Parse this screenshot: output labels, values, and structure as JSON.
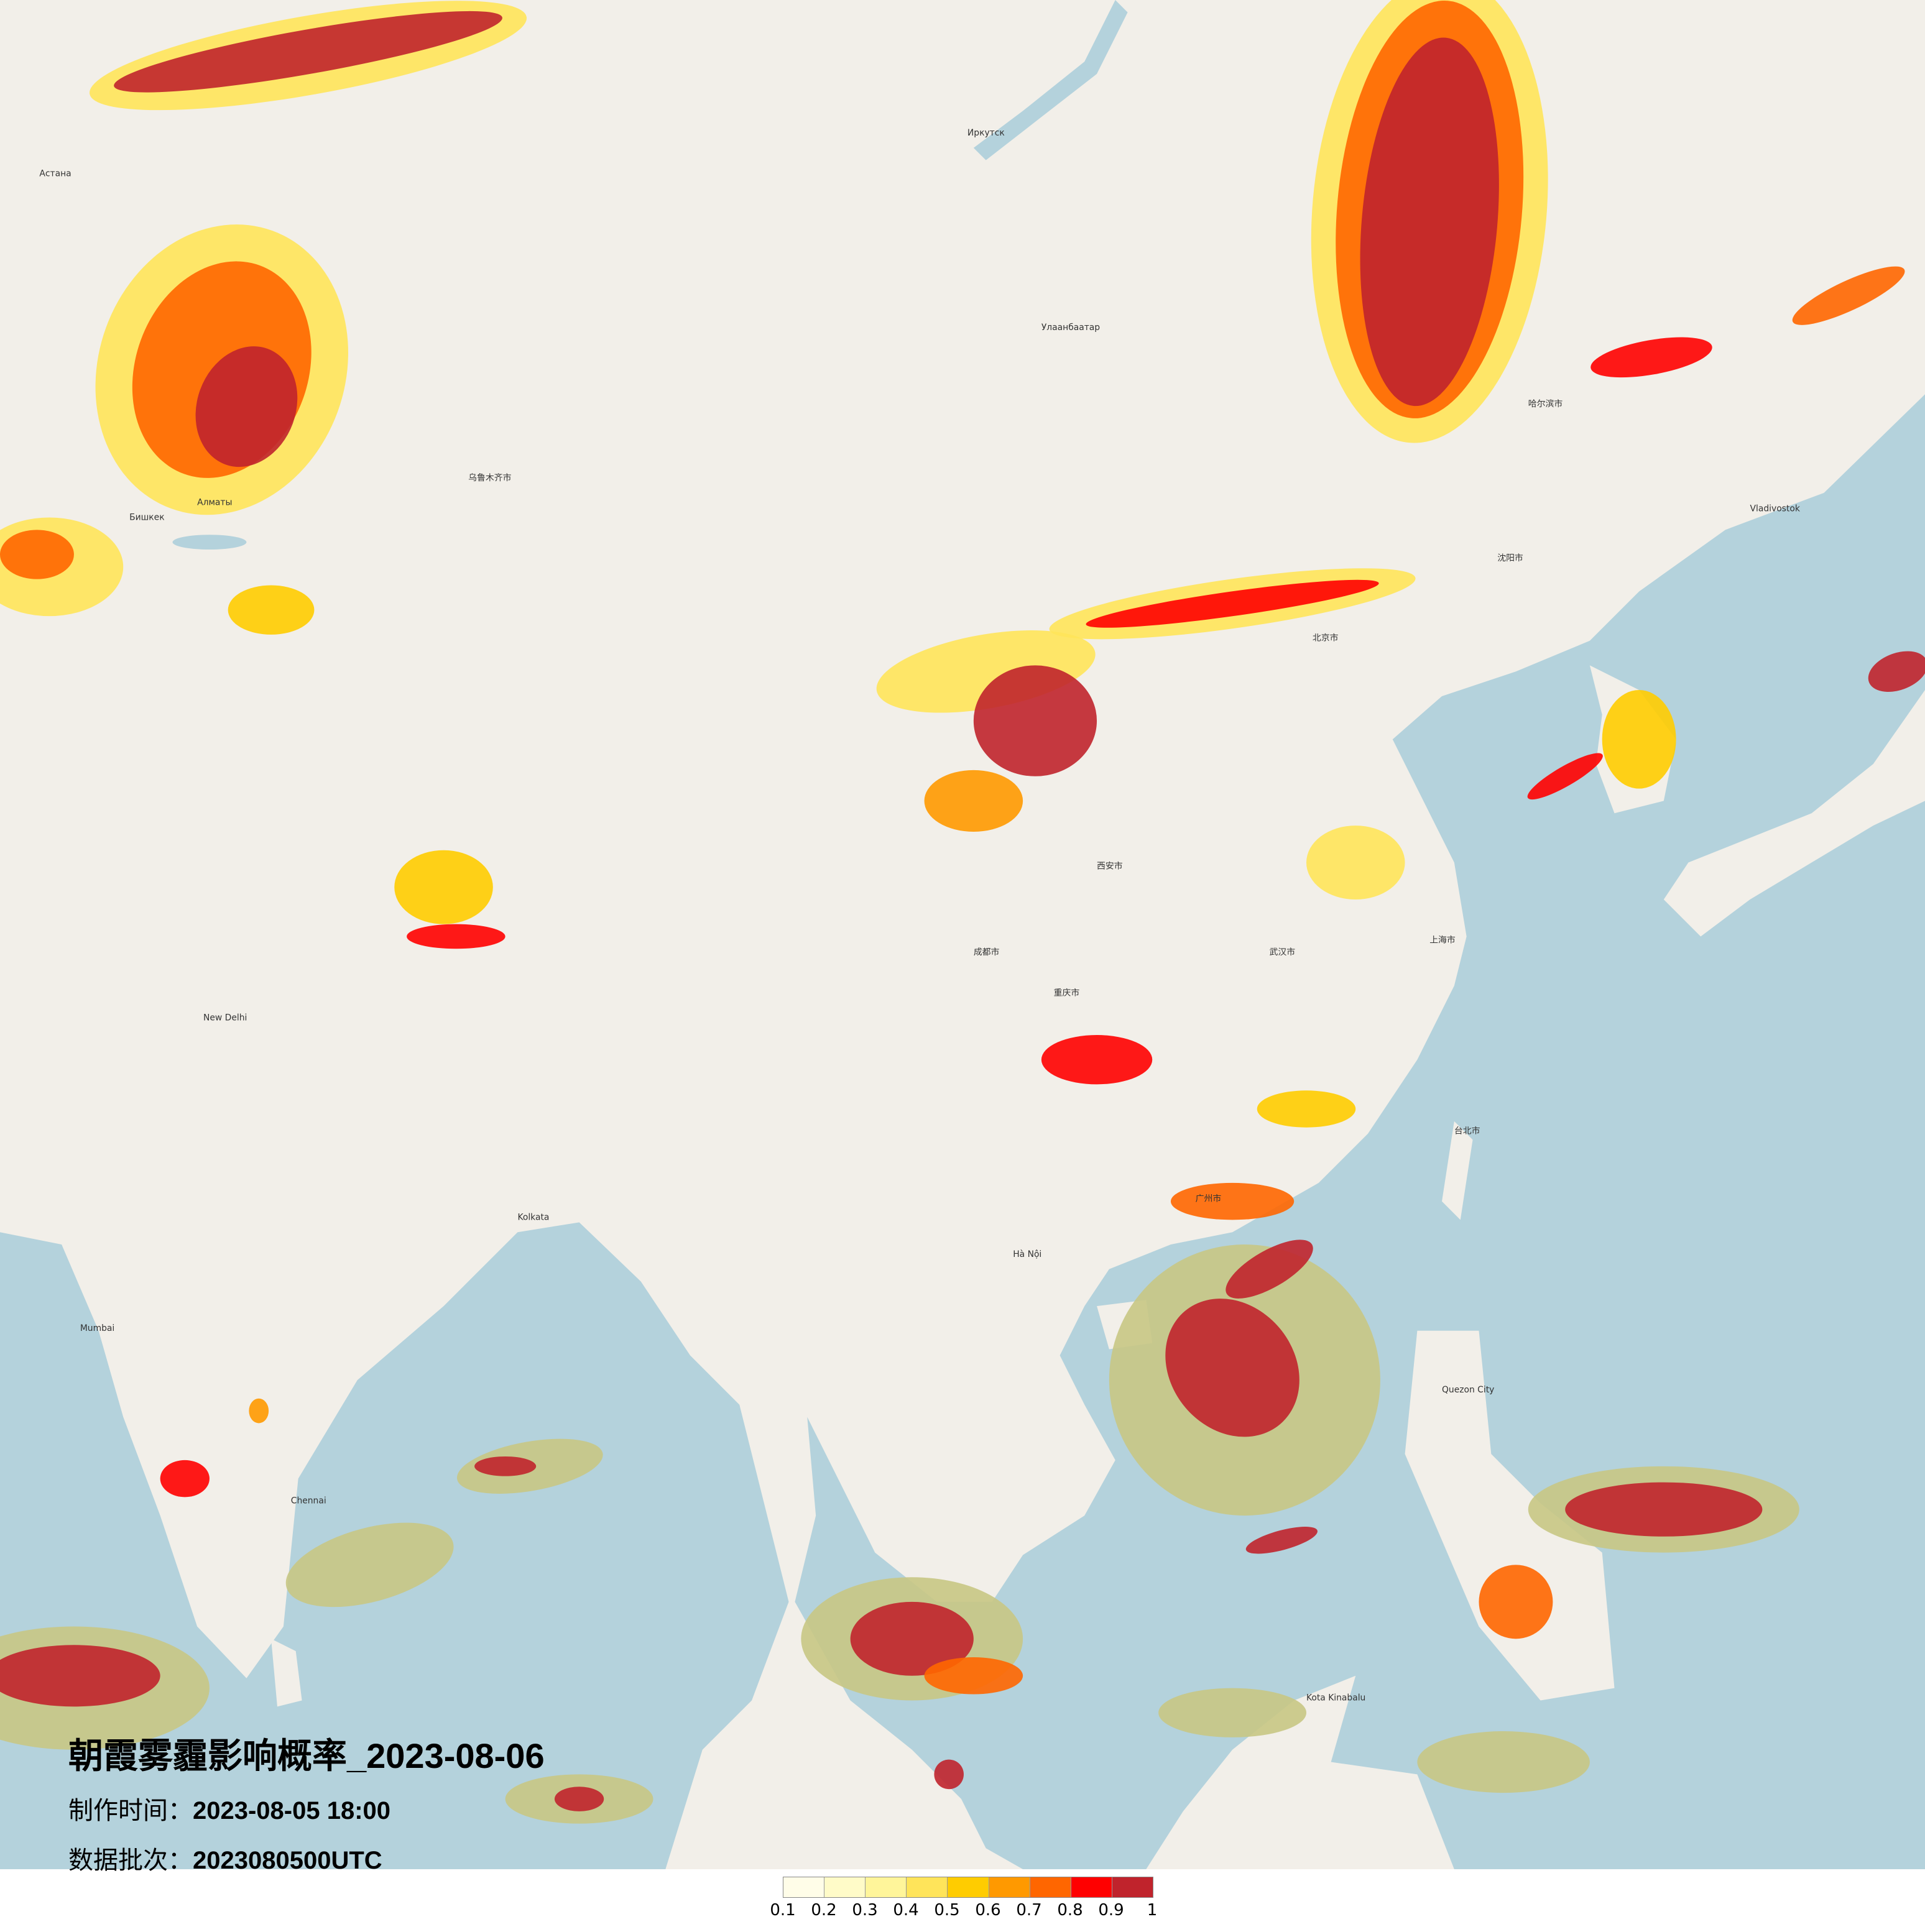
{
  "title": "朝霞雾霾影响概率_2023-08-06",
  "production_time_label": "制作时间：",
  "production_time": "2023-08-05 18:00",
  "data_batch_label": "数据批次：",
  "data_batch": "2023080500UTC",
  "legend": {
    "colors": [
      "#fffde8",
      "#fffbc8",
      "#fff59a",
      "#ffe45a",
      "#ffcc00",
      "#ff9900",
      "#ff6600",
      "#ff0000",
      "#c0232c"
    ],
    "ticks": [
      "0.1",
      "0.2",
      "0.3",
      "0.4",
      "0.5",
      "0.6",
      "0.7",
      "0.8",
      "0.9",
      "1"
    ]
  },
  "map": {
    "land_color": "#f2efe9",
    "sea_color": "#b4d2dc",
    "cities": [
      "北京市",
      "上海市",
      "武汉市",
      "广州市",
      "重庆市",
      "成都市",
      "西安市",
      "沈阳市",
      "哈尔滨市",
      "乌鲁木齐市",
      "台北市",
      "Улаанбаатар",
      "Иркутск",
      "Алматы",
      "Бишкек",
      "Астана",
      "New Delhi",
      "Kolkata",
      "Hà Nội",
      "Quezon City",
      "Kota Kinabalu",
      "Chennai",
      "Mumbai",
      "Vladivostok"
    ]
  }
}
